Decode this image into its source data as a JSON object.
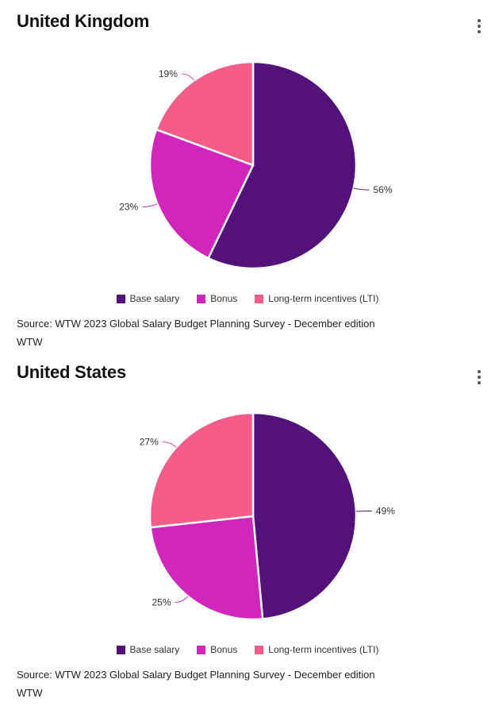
{
  "colors": {
    "base_salary": "#531279",
    "bonus": "#D126BB",
    "lti": "#F55C87",
    "leader": "#8a6a9a"
  },
  "icons": {
    "menu": "kebab-menu-icon"
  },
  "charts": [
    {
      "id": "uk",
      "title": "United Kingdom",
      "source": "Source: WTW 2023 Global Salary Budget Planning Survey - December edition",
      "credit": "WTW"
    },
    {
      "id": "us",
      "title": "United States",
      "source": "Source: WTW 2023 Global Salary Budget Planning Survey - December edition",
      "credit": "WTW"
    }
  ],
  "chart_data": [
    {
      "type": "pie",
      "title": "United Kingdom",
      "categories": [
        "Base salary",
        "Bonus",
        "Long-term incentives (LTI)"
      ],
      "values": [
        56,
        23,
        19
      ],
      "labels": [
        "56%",
        "23%",
        "19%"
      ],
      "legend_position": "bottom"
    },
    {
      "type": "pie",
      "title": "United States",
      "categories": [
        "Base salary",
        "Bonus",
        "Long-term incentives (LTI)"
      ],
      "values": [
        49,
        25,
        27
      ],
      "labels": [
        "49%",
        "25%",
        "27%"
      ],
      "legend_position": "bottom"
    }
  ]
}
